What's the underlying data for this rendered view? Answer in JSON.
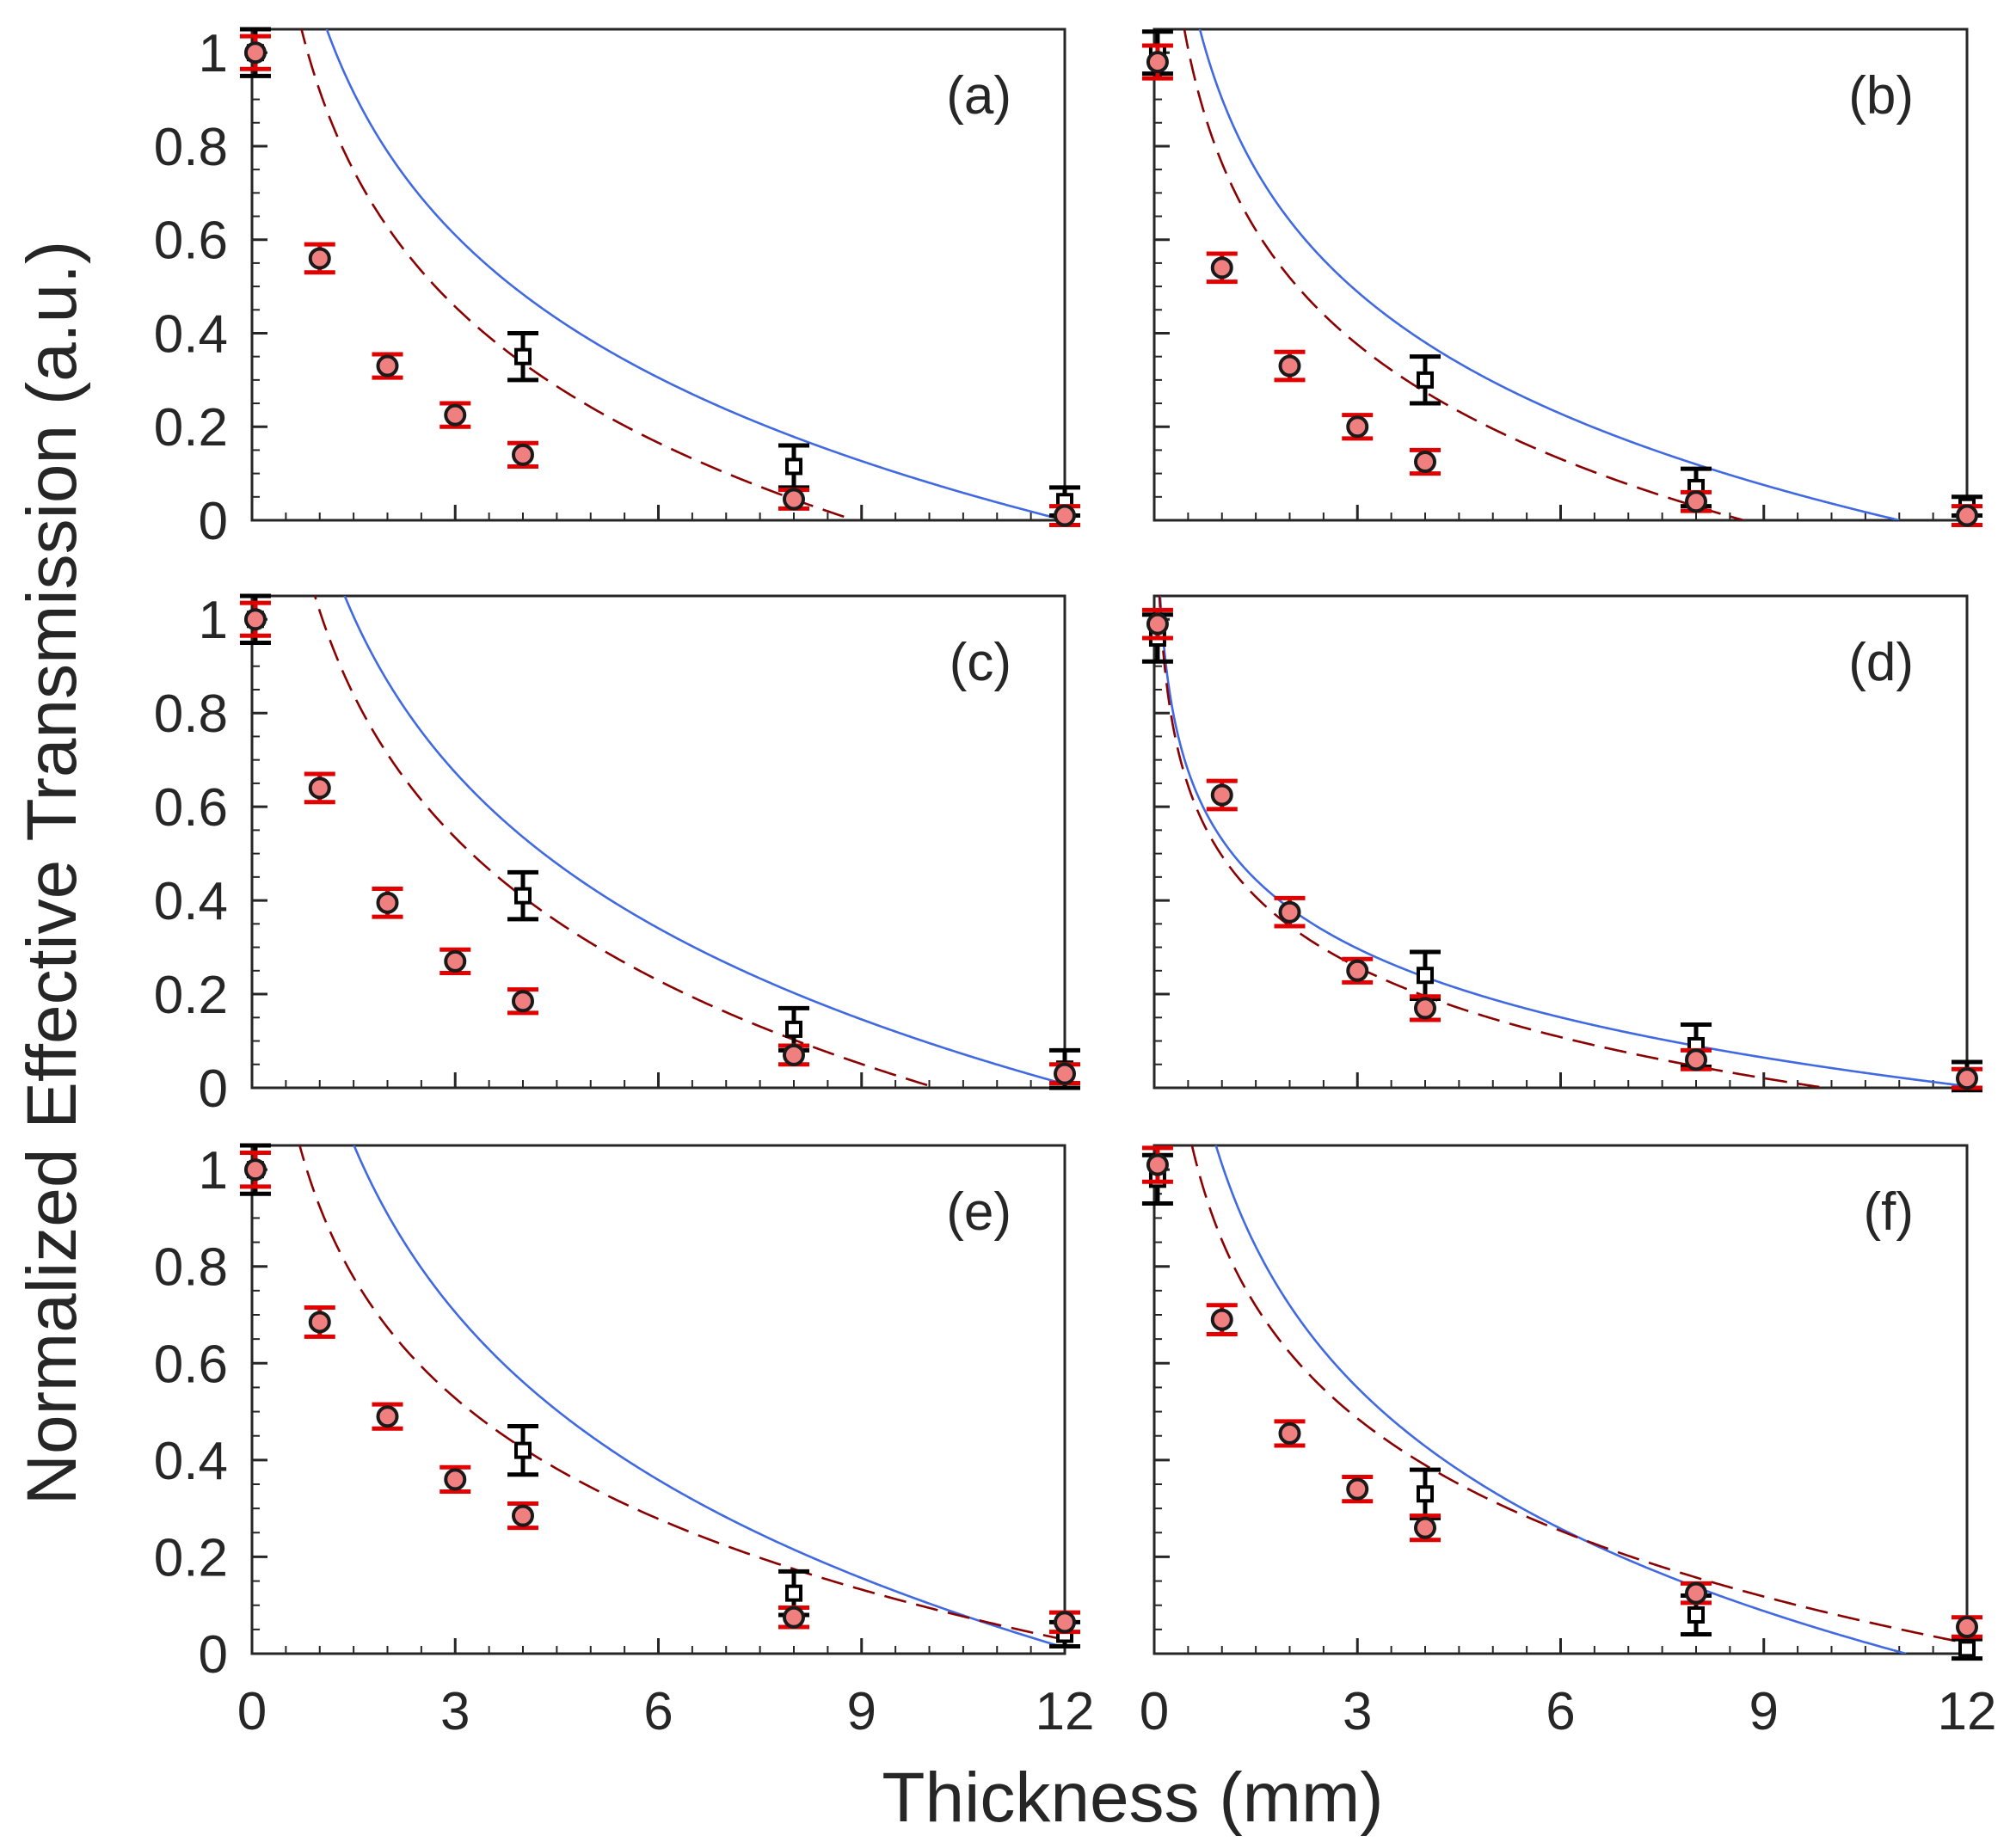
{
  "figure": {
    "ylabel": "Normalized Effective Transmission (a.u.)",
    "xlabel": "Thickness (mm)",
    "colors": {
      "solid_line": "#4169e1",
      "dashed_line": "#8b0000",
      "marker_fill": "#f08080",
      "error_red": "#e00000",
      "error_black": "#000000",
      "axis": "#262626"
    }
  },
  "chart_data": [
    {
      "type": "scatter",
      "panel": "(a)",
      "xlim": [
        0,
        12
      ],
      "ylim": [
        0,
        1.05
      ],
      "xticks": [
        "0",
        "3",
        "6",
        "9",
        "12"
      ],
      "yticks": [
        "0",
        "0.2",
        "0.4",
        "0.6",
        "0.8",
        "1"
      ],
      "show_xticklabels": false,
      "show_yticklabels": true,
      "circles": {
        "x": [
          0.05,
          1,
          2,
          3,
          4,
          8,
          12
        ],
        "y": [
          1.0,
          0.56,
          0.33,
          0.225,
          0.14,
          0.045,
          0.01
        ],
        "err": [
          0.035,
          0.03,
          0.025,
          0.025,
          0.025,
          0.02,
          0.02
        ]
      },
      "squares": {
        "x": [
          0.05,
          4,
          8,
          12
        ],
        "y": [
          1.0,
          0.35,
          0.115,
          0.04
        ],
        "err": [
          0.05,
          0.05,
          0.045,
          0.03
        ]
      },
      "solid_curve": {
        "a": 0.44,
        "x0": 12.0
      },
      "dashed_curve": {
        "a": 0.42,
        "x0": 8.9
      }
    },
    {
      "type": "scatter",
      "panel": "(b)",
      "xlim": [
        0,
        12
      ],
      "ylim": [
        0,
        1.05
      ],
      "xticks": [
        "0",
        "3",
        "6",
        "9",
        "12"
      ],
      "yticks": [
        "0",
        "0.2",
        "0.4",
        "0.6",
        "0.8",
        "1"
      ],
      "show_xticklabels": false,
      "show_yticklabels": false,
      "circles": {
        "x": [
          0.05,
          1,
          2,
          3,
          4,
          8,
          12
        ],
        "y": [
          0.98,
          0.54,
          0.33,
          0.2,
          0.125,
          0.04,
          0.01
        ],
        "err": [
          0.035,
          0.03,
          0.03,
          0.025,
          0.025,
          0.02,
          0.02
        ]
      },
      "squares": {
        "x": [
          0.05,
          4,
          8,
          12
        ],
        "y": [
          1.0,
          0.3,
          0.07,
          0.03
        ],
        "err": [
          0.045,
          0.05,
          0.04,
          0.02
        ]
      },
      "solid_curve": {
        "a": 0.376,
        "x0": 11.0
      },
      "dashed_curve": {
        "a": 0.353,
        "x0": 8.7
      }
    },
    {
      "type": "scatter",
      "panel": "(c)",
      "xlim": [
        0,
        12
      ],
      "ylim": [
        0,
        1.05
      ],
      "xticks": [
        "0",
        "3",
        "6",
        "9",
        "12"
      ],
      "yticks": [
        "0",
        "0.2",
        "0.4",
        "0.6",
        "0.8",
        "1"
      ],
      "show_xticklabels": false,
      "show_yticklabels": true,
      "circles": {
        "x": [
          0.05,
          1,
          2,
          3,
          4,
          8,
          12
        ],
        "y": [
          1.0,
          0.64,
          0.395,
          0.27,
          0.185,
          0.07,
          0.03
        ],
        "err": [
          0.035,
          0.03,
          0.03,
          0.025,
          0.025,
          0.02,
          0.02
        ]
      },
      "squares": {
        "x": [
          0.05,
          4,
          8,
          12
        ],
        "y": [
          1.0,
          0.41,
          0.125,
          0.04
        ],
        "err": [
          0.05,
          0.05,
          0.045,
          0.04
        ]
      },
      "solid_curve": {
        "a": 0.48,
        "x0": 12.2
      },
      "dashed_curve": {
        "a": 0.44,
        "x0": 10.1
      }
    },
    {
      "type": "scatter",
      "panel": "(d)",
      "xlim": [
        0,
        12
      ],
      "ylim": [
        0,
        1.05
      ],
      "xticks": [
        "0",
        "3",
        "6",
        "9",
        "12"
      ],
      "yticks": [
        "0",
        "0.2",
        "0.4",
        "0.6",
        "0.8",
        "1"
      ],
      "show_xticklabels": false,
      "show_yticklabels": false,
      "circles": {
        "x": [
          0.05,
          1,
          2,
          3,
          4,
          8,
          12
        ],
        "y": [
          0.99,
          0.625,
          0.375,
          0.25,
          0.17,
          0.06,
          0.02
        ],
        "err": [
          0.03,
          0.03,
          0.03,
          0.025,
          0.025,
          0.02,
          0.02
        ]
      },
      "squares": {
        "x": [
          0.05,
          4,
          8,
          12
        ],
        "y": [
          0.96,
          0.24,
          0.09,
          0.025
        ],
        "err": [
          0.05,
          0.05,
          0.045,
          0.03
        ]
      },
      "solid_curve": {
        "a": 0.212,
        "x0": 12.2
      },
      "dashed_curve": {
        "a": 0.216,
        "x0": 9.9
      }
    },
    {
      "type": "scatter",
      "panel": "(e)",
      "xlim": [
        0,
        12
      ],
      "ylim": [
        0,
        1.05
      ],
      "xticks": [
        "0",
        "3",
        "6",
        "9",
        "12"
      ],
      "yticks": [
        "0",
        "0.2",
        "0.4",
        "0.6",
        "0.8",
        "1"
      ],
      "show_xticklabels": true,
      "show_yticklabels": true,
      "circles": {
        "x": [
          0.05,
          1,
          2,
          3,
          4,
          8,
          12
        ],
        "y": [
          1.0,
          0.685,
          0.49,
          0.36,
          0.285,
          0.075,
          0.065
        ],
        "err": [
          0.035,
          0.03,
          0.025,
          0.025,
          0.025,
          0.02,
          0.02
        ]
      },
      "squares": {
        "x": [
          0.05,
          4,
          8,
          12
        ],
        "y": [
          1.0,
          0.42,
          0.125,
          0.04
        ],
        "err": [
          0.05,
          0.05,
          0.045,
          0.025
        ]
      },
      "solid_curve": {
        "a": 0.5,
        "x0": 12.3
      },
      "dashed_curve": {
        "a": 0.36,
        "x0": 13.0
      }
    },
    {
      "type": "scatter",
      "panel": "(f)",
      "xlim": [
        0,
        12
      ],
      "ylim": [
        0,
        1.05
      ],
      "xticks": [
        "0",
        "3",
        "6",
        "9",
        "12"
      ],
      "yticks": [
        "0",
        "0.2",
        "0.4",
        "0.6",
        "0.8",
        "1"
      ],
      "show_xticklabels": true,
      "show_yticklabels": false,
      "circles": {
        "x": [
          0.05,
          1,
          2,
          3,
          4,
          8,
          12
        ],
        "y": [
          1.01,
          0.69,
          0.455,
          0.34,
          0.26,
          0.125,
          0.055
        ],
        "err": [
          0.035,
          0.03,
          0.025,
          0.025,
          0.025,
          0.02,
          0.02
        ]
      },
      "squares": {
        "x": [
          0.05,
          4,
          8,
          12
        ],
        "y": [
          0.98,
          0.33,
          0.08,
          0.01
        ],
        "err": [
          0.05,
          0.05,
          0.04,
          0.02
        ]
      },
      "solid_curve": {
        "a": 0.42,
        "x0": 11.1
      },
      "dashed_curve": {
        "a": 0.335,
        "x0": 12.8
      }
    }
  ]
}
